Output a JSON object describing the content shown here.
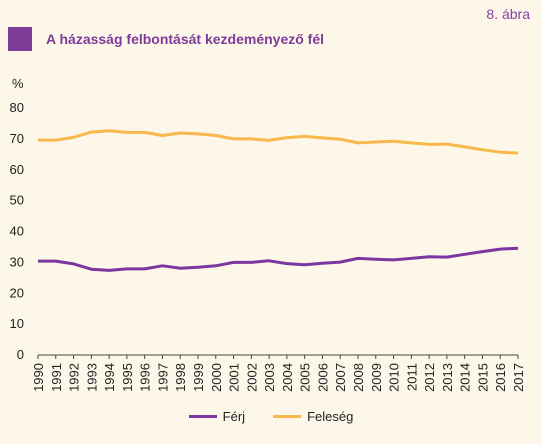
{
  "figure_number": "8. ábra",
  "title": "A házasság felbontását kezdeményező fél",
  "colors": {
    "accent": "#7d3c98",
    "ferj": "#7b36a0",
    "feleseg": "#f6b94a",
    "background": "#fdf7ea"
  },
  "chart_data": {
    "type": "line",
    "title": "A házasság felbontását kezdeményező fél",
    "ylabel": "%",
    "xlabel": "",
    "ylim": [
      0,
      80
    ],
    "yticks": [
      0,
      10,
      20,
      30,
      40,
      50,
      60,
      70,
      80
    ],
    "grid": false,
    "legend": "bottom",
    "x": [
      "1990",
      "1991",
      "1992",
      "1993",
      "1994",
      "1995",
      "1996",
      "1997",
      "1998",
      "1999",
      "2000",
      "2001",
      "2002",
      "2003",
      "2004",
      "2005",
      "2006",
      "2007",
      "2008",
      "2009",
      "2010",
      "2011",
      "2012",
      "2013",
      "2014",
      "2015",
      "2016",
      "2017"
    ],
    "series": [
      {
        "name": "Férj",
        "color": "#7b36a0",
        "values": [
          30.4,
          30.4,
          29.5,
          27.8,
          27.4,
          27.9,
          27.9,
          28.9,
          28.1,
          28.4,
          28.9,
          30.0,
          30.0,
          30.5,
          29.6,
          29.2,
          29.7,
          30.1,
          31.3,
          31.0,
          30.8,
          31.3,
          31.8,
          31.7,
          32.6,
          33.5,
          34.3,
          34.6
        ]
      },
      {
        "name": "Feleség",
        "color": "#f6b94a",
        "values": [
          69.6,
          69.6,
          70.5,
          72.2,
          72.6,
          72.1,
          72.1,
          71.1,
          71.9,
          71.6,
          71.1,
          70.0,
          70.0,
          69.5,
          70.4,
          70.8,
          70.3,
          69.9,
          68.7,
          69.0,
          69.2,
          68.7,
          68.2,
          68.3,
          67.4,
          66.5,
          65.7,
          65.4
        ]
      }
    ]
  }
}
